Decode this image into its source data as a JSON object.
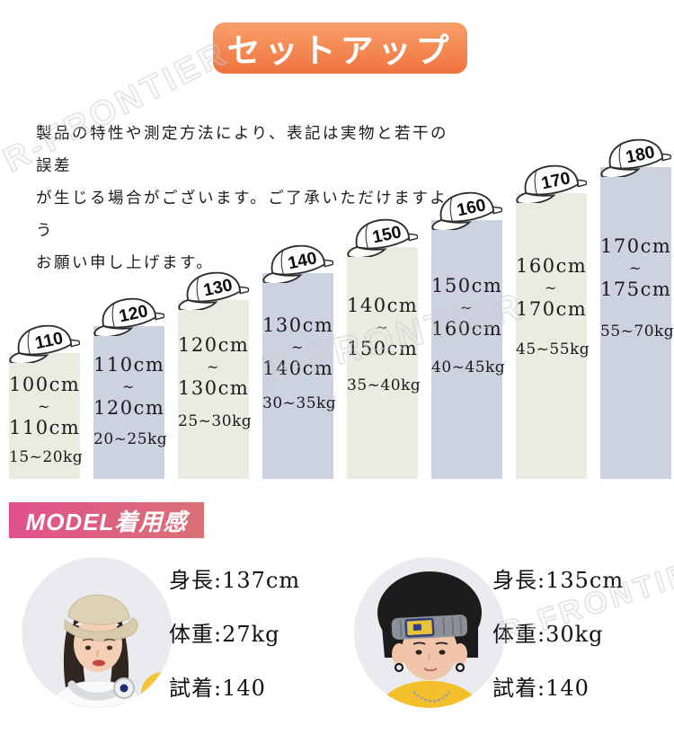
{
  "header": {
    "title": "セットアップ",
    "gradient_top": "#f9a06a",
    "gradient_bottom": "#ef7440"
  },
  "disclaimer": {
    "line1": "製品の特性や測定方法により、表記は実物と若干の誤差",
    "line2": "が生じる場合がございます。ご了承いただけますよう",
    "line3": "お願い申し上げます。"
  },
  "size_chart": {
    "tilde": "~",
    "odd_bar_color": "#ecebe2",
    "even_bar_color": "#cdd2e0",
    "sizes": [
      {
        "size": "110",
        "height_from": "100cm",
        "height_to": "110cm",
        "weight": "15~20kg"
      },
      {
        "size": "120",
        "height_from": "110cm",
        "height_to": "120cm",
        "weight": "20~25kg"
      },
      {
        "size": "130",
        "height_from": "120cm",
        "height_to": "130cm",
        "weight": "25~30kg"
      },
      {
        "size": "140",
        "height_from": "130cm",
        "height_to": "140cm",
        "weight": "30~35kg"
      },
      {
        "size": "150",
        "height_from": "140cm",
        "height_to": "150cm",
        "weight": "35~40kg"
      },
      {
        "size": "160",
        "height_from": "150cm",
        "height_to": "160cm",
        "weight": "40~45kg"
      },
      {
        "size": "170",
        "height_from": "160cm",
        "height_to": "170cm",
        "weight": "45~55kg"
      },
      {
        "size": "180",
        "height_from": "170cm",
        "height_to": "175cm",
        "weight": "55~70kg"
      }
    ]
  },
  "model_section": {
    "title": "MODEL着用感",
    "gradient_left": "#e1508c",
    "gradient_right": "#da7176",
    "models": [
      {
        "height": "身長:137cm",
        "weight": "体重:27kg",
        "fitting": "試着:140"
      },
      {
        "height": "身長:135cm",
        "weight": "体重:30kg",
        "fitting": "試着:140"
      }
    ]
  },
  "watermark": {
    "text": "R-FRONTIER"
  }
}
